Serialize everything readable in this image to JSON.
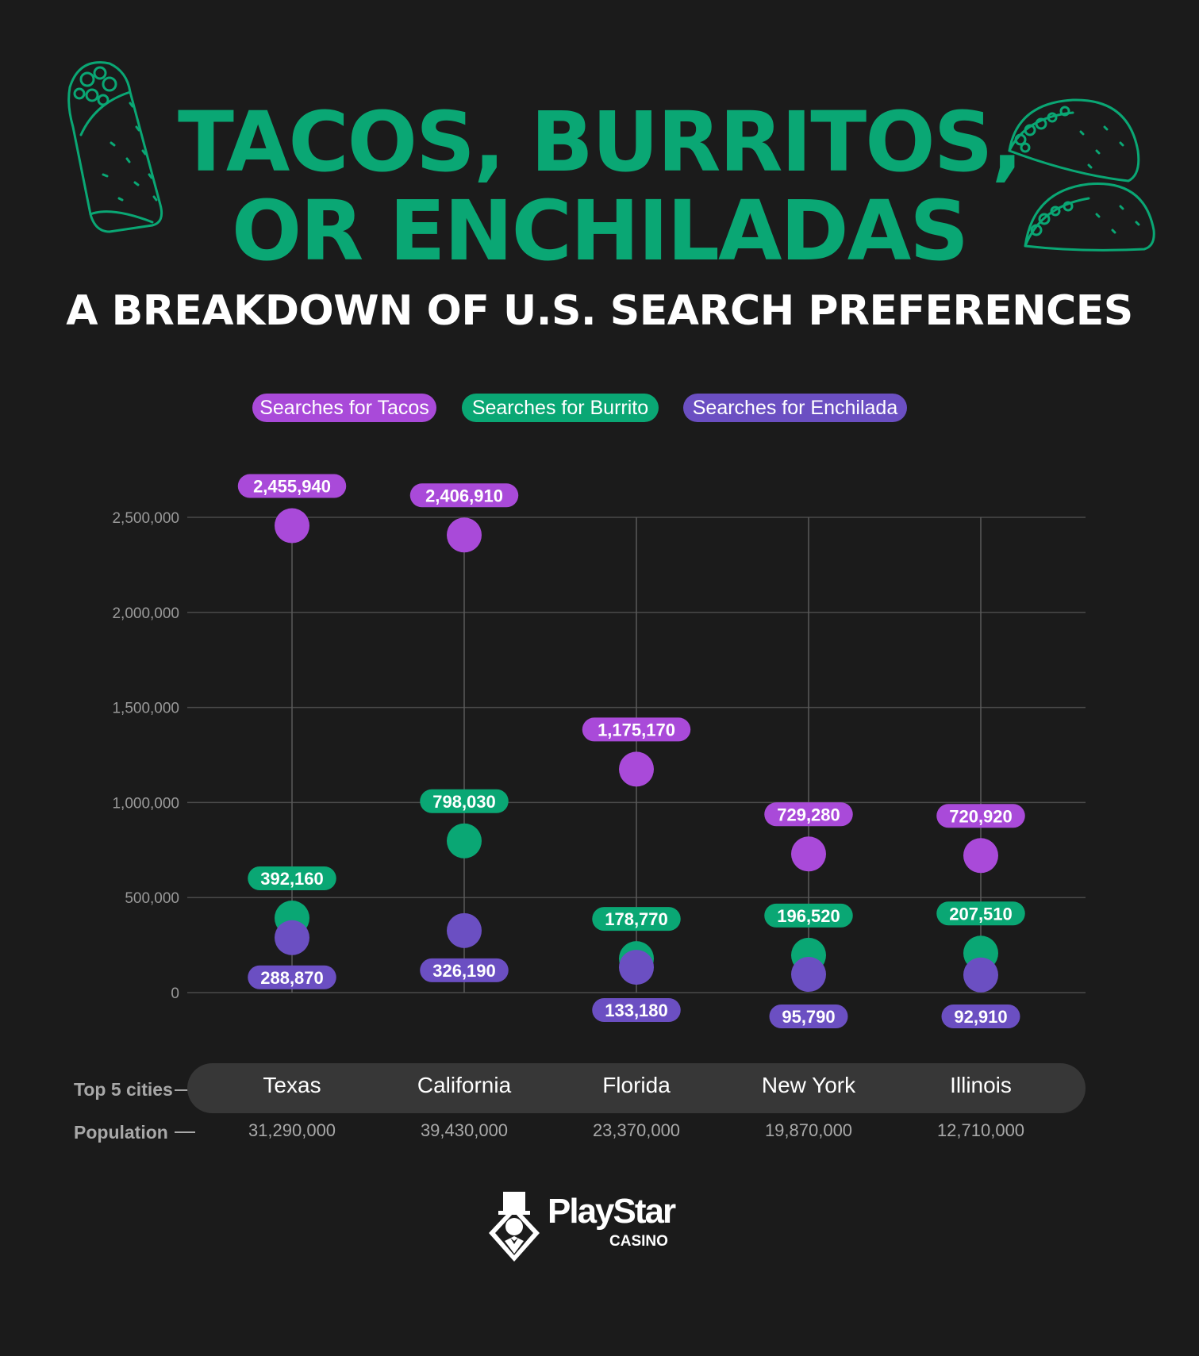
{
  "header": {
    "title_line1": "TACOS, BURRITOS,",
    "title_line2": "OR ENCHILADAS",
    "subtitle": "A BREAKDOWN OF U.S. SEARCH PREFERENCES"
  },
  "colors": {
    "background": "#1b1b1b",
    "tacos": "#a94ad9",
    "burrito": "#0aa774",
    "enchilada": "#6b4fc2",
    "title_green": "#0aa774"
  },
  "chart_data": {
    "type": "scatter",
    "categories": [
      "Texas",
      "California",
      "Florida",
      "New York",
      "Illinois"
    ],
    "series": [
      {
        "name": "Searches for Tacos",
        "values": [
          2455940,
          2406910,
          1175170,
          729280,
          720920
        ]
      },
      {
        "name": "Searches for Burrito",
        "values": [
          392160,
          798030,
          178770,
          196520,
          207510
        ]
      },
      {
        "name": "Searches for Enchilada",
        "values": [
          288870,
          326190,
          133180,
          95790,
          92910
        ]
      }
    ],
    "value_labels": [
      [
        "2,455,940",
        "2,406,910",
        "1,175,170",
        "729,280",
        "720,920"
      ],
      [
        "392,160",
        "798,030",
        "178,770",
        "196,520",
        "207,510"
      ],
      [
        "288,870",
        "326,190",
        "133,180",
        "95,790",
        "92,910"
      ]
    ],
    "yticks": [
      0,
      500000,
      1000000,
      1500000,
      2000000,
      2500000
    ],
    "ytick_labels": [
      "0",
      "500,000",
      "1,000,000",
      "1,500,000",
      "2,000,000",
      "2,500,000"
    ],
    "ylim": [
      0,
      2500000
    ],
    "grid": true,
    "legend": "top-center",
    "xlabel": "Top 5 cities",
    "row_label_population": "Population",
    "population": [
      "31,290,000",
      "39,430,000",
      "23,370,000",
      "19,870,000",
      "12,710,000"
    ]
  },
  "brand": {
    "name": "PlayStar",
    "sub": "CASINO"
  },
  "icons": [
    "burrito-illustration-icon",
    "tacos-illustration-icon",
    "playstar-mascot-icon"
  ]
}
